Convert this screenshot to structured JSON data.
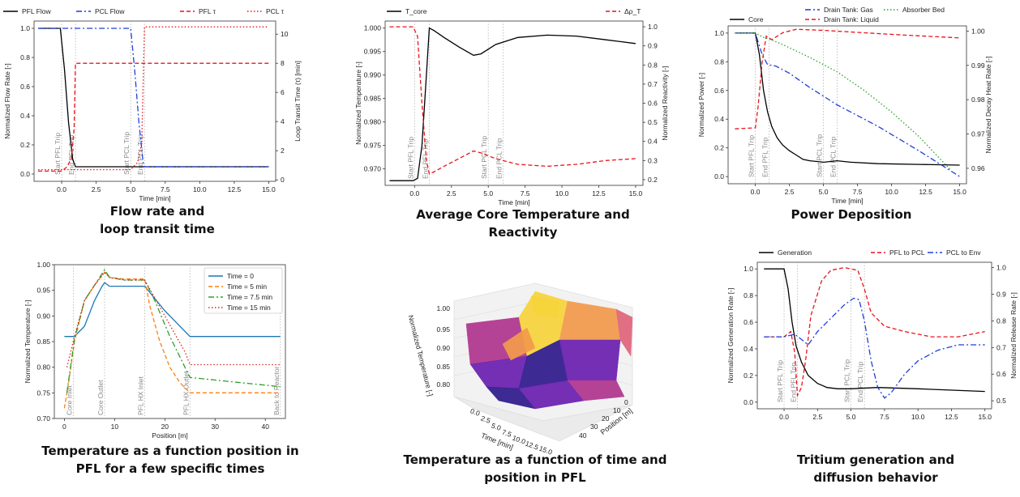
{
  "captions": {
    "c1": [
      "Flow rate and",
      "loop transit time"
    ],
    "c2": [
      "Average Core Temperature and",
      "Reactivity"
    ],
    "c3": [
      "Power Deposition"
    ],
    "c4": [
      "Temperature as a function position in",
      "PFL for a few specific times"
    ],
    "c5": [
      "Temperature as a function of time and",
      "position in PFL"
    ],
    "c6": [
      "Tritium generation and",
      "diffusion behavior"
    ]
  },
  "chart_data": [
    {
      "id": "flow",
      "type": "line",
      "xlabel": "Time [min]",
      "ylabel": "Normalized Flow Rate [-]",
      "y2label": "Loop Transit Time (τ) [min]",
      "xlim": [
        -2,
        15.5
      ],
      "ylim": [
        -0.05,
        1.05
      ],
      "y2lim": [
        -0.1,
        10.9
      ],
      "xticks": [
        "0.0",
        "2.5",
        "5.0",
        "7.5",
        "10.0",
        "12.5",
        "15.0"
      ],
      "yticks": [
        "0.0",
        "0.2",
        "0.4",
        "0.6",
        "0.8",
        "1.0"
      ],
      "y2ticks": [
        "0",
        "2",
        "4",
        "6",
        "8",
        "10"
      ],
      "legend": [
        "PFL Flow",
        "PCL Flow",
        "PFL τ",
        "PCL τ"
      ],
      "vlines": [
        {
          "x": 0,
          "label": "Start PFL Trip"
        },
        {
          "x": 1,
          "label": "End PFL Trip"
        },
        {
          "x": 5,
          "label": "Start PCL Trip"
        },
        {
          "x": 6,
          "label": "End PCL Trip"
        }
      ],
      "series": [
        {
          "name": "PFL Flow",
          "axis": "left",
          "color": "#000000",
          "dash": "",
          "x": [
            -1.7,
            -0.1,
            0.2,
            0.5,
            0.8,
            1.0,
            15
          ],
          "y": [
            1.0,
            1.0,
            0.72,
            0.35,
            0.1,
            0.05,
            0.05
          ]
        },
        {
          "name": "PCL Flow",
          "axis": "left",
          "color": "#1f3fd8",
          "dash": "7,3,2,3",
          "x": [
            -1.7,
            5.0,
            5.3,
            5.6,
            5.9,
            6.0,
            15
          ],
          "y": [
            1.0,
            1.0,
            0.7,
            0.35,
            0.08,
            0.05,
            0.05
          ]
        },
        {
          "name": "PFL τ",
          "axis": "right",
          "color": "#e8141c",
          "dash": "5,3",
          "x": [
            -1.7,
            0.0,
            0.4,
            0.7,
            0.9,
            1.0,
            15
          ],
          "y": [
            0.6,
            0.6,
            0.9,
            1.5,
            3.5,
            8.0,
            8.0
          ]
        },
        {
          "name": "PCL τ",
          "axis": "right",
          "color": "#e8141c",
          "dash": "1.5,2.5",
          "x": [
            -1.7,
            5.0,
            5.5,
            5.8,
            6.0,
            15
          ],
          "y": [
            0.7,
            0.7,
            1.2,
            2.5,
            10.5,
            10.5
          ]
        }
      ]
    },
    {
      "id": "temp",
      "type": "line",
      "xlabel": "Time [min]",
      "ylabel": "Normalized Temperature [-]",
      "y2label": "Normalized Reactivity [-]",
      "xlim": [
        -2,
        15.5
      ],
      "ylim": [
        0.9665,
        1.0015
      ],
      "y2lim": [
        0.17,
        1.03
      ],
      "xticks": [
        "0.0",
        "2.5",
        "5.0",
        "7.5",
        "10.0",
        "12.5",
        "15.0"
      ],
      "yticks": [
        "0.970",
        "0.975",
        "0.980",
        "0.985",
        "0.990",
        "0.995",
        "1.000"
      ],
      "y2ticks": [
        "0.2",
        "0.3",
        "0.4",
        "0.5",
        "0.6",
        "0.7",
        "0.8",
        "0.9",
        "1.0"
      ],
      "legend": [
        "T_core",
        "Δρ_T"
      ],
      "vlines": [
        {
          "x": 0,
          "label": "Start PFL Trip"
        },
        {
          "x": 1,
          "label": "End PFL Trip"
        },
        {
          "x": 5,
          "label": "Start PCL Trip"
        },
        {
          "x": 6,
          "label": "End PCL Trip"
        }
      ],
      "series": [
        {
          "name": "T_core",
          "axis": "left",
          "color": "#000000",
          "dash": "",
          "x": [
            -1.7,
            -0.1,
            0.2,
            0.5,
            0.8,
            1.0,
            1.3,
            2.0,
            3.0,
            4.0,
            4.5,
            5.5,
            7.0,
            9.0,
            11.0,
            13.0,
            15.0
          ],
          "y": [
            0.9675,
            0.9675,
            0.968,
            0.975,
            0.99,
            1.0,
            0.9995,
            0.998,
            0.996,
            0.9942,
            0.9945,
            0.9965,
            0.998,
            0.9985,
            0.9983,
            0.9975,
            0.9967
          ]
        },
        {
          "name": "Δρ_T",
          "axis": "right",
          "color": "#e8141c",
          "dash": "5,3",
          "x": [
            -1.7,
            -0.1,
            0.2,
            0.5,
            0.8,
            1.0,
            1.3,
            2.0,
            3.0,
            4.0,
            4.5,
            5.5,
            7.0,
            9.0,
            11.0,
            13.0,
            15.0
          ],
          "y": [
            1.0,
            1.0,
            0.95,
            0.6,
            0.3,
            0.23,
            0.24,
            0.27,
            0.31,
            0.35,
            0.34,
            0.31,
            0.28,
            0.27,
            0.28,
            0.3,
            0.31
          ]
        }
      ]
    },
    {
      "id": "power",
      "type": "line",
      "xlabel": "Time [min]",
      "ylabel": "Normalized Power [-]",
      "y2label": "Normalized Decay Heat Rate [-]",
      "xlim": [
        -2,
        15.5
      ],
      "ylim": [
        -0.05,
        1.05
      ],
      "y2lim": [
        0.9555,
        1.0015
      ],
      "xticks": [
        "0.0",
        "2.5",
        "5.0",
        "7.5",
        "10.0",
        "12.5",
        "15.0"
      ],
      "yticks": [
        "0.0",
        "0.2",
        "0.4",
        "0.6",
        "0.8",
        "1.0"
      ],
      "y2ticks": [
        "0.96",
        "0.97",
        "0.98",
        "0.99",
        "1.00"
      ],
      "legend": [
        "Core",
        "Drain Tank: Gas",
        "Drain Tank: Liquid",
        "Absorber Bed"
      ],
      "vlines": [
        {
          "x": 0,
          "label": "Start PFL Trip"
        },
        {
          "x": 1,
          "label": "End PFL Trip"
        },
        {
          "x": 5,
          "label": "Start PCL Trip"
        },
        {
          "x": 6,
          "label": "End PCL Trip"
        }
      ],
      "series": [
        {
          "name": "Core",
          "axis": "left",
          "color": "#000000",
          "dash": "",
          "x": [
            -1.5,
            0.0,
            0.3,
            0.6,
            0.9,
            1.2,
            1.6,
            2.0,
            2.5,
            3.0,
            3.5,
            4.0,
            5.0,
            6.0,
            7.0,
            9.0,
            12.0,
            15.0
          ],
          "y": [
            1.0,
            1.0,
            0.85,
            0.6,
            0.45,
            0.35,
            0.27,
            0.22,
            0.18,
            0.15,
            0.12,
            0.11,
            0.1,
            0.11,
            0.1,
            0.09,
            0.085,
            0.08
          ]
        },
        {
          "name": "Drain Tank: Gas",
          "axis": "left",
          "color": "#1f3fd8",
          "dash": "7,3,2,3",
          "x": [
            -1.5,
            0.0,
            0.5,
            0.9,
            1.5,
            2.5,
            4.0,
            6.0,
            9.0,
            12.0,
            15.0
          ],
          "y": [
            1.0,
            1.0,
            0.85,
            0.78,
            0.77,
            0.72,
            0.62,
            0.5,
            0.35,
            0.18,
            0.0
          ]
        },
        {
          "name": "Drain Tank: Liquid",
          "axis": "right",
          "color": "#e8141c",
          "dash": "5,3",
          "x": [
            -1.5,
            0.0,
            0.2,
            0.5,
            0.8,
            1.2,
            2.0,
            3.0,
            5.0,
            8.0,
            11.0,
            15.0
          ],
          "y": [
            0.9715,
            0.9718,
            0.978,
            0.991,
            0.9985,
            0.9975,
            0.9995,
            1.0005,
            1.0002,
            0.9995,
            0.9988,
            0.998
          ]
        },
        {
          "name": "Absorber Bed",
          "axis": "left",
          "color": "#2ca02c",
          "dash": "1.5,2.5",
          "x": [
            -1.5,
            0.0,
            0.6,
            1.0,
            2.0,
            4.0,
            6.0,
            8.0,
            10.0,
            12.0,
            14.3
          ],
          "y": [
            1.0,
            1.0,
            0.97,
            0.96,
            0.92,
            0.83,
            0.73,
            0.6,
            0.45,
            0.28,
            0.05
          ]
        }
      ]
    },
    {
      "id": "position",
      "type": "line",
      "xlabel": "Position [m]",
      "ylabel": "Normalized Temperature [-]",
      "xlim": [
        -2,
        44
      ],
      "ylim": [
        0.7,
        1.0
      ],
      "xticks": [
        "0",
        "10",
        "20",
        "30",
        "40"
      ],
      "xtickvals": [
        0,
        10,
        20,
        30,
        40
      ],
      "yticks": [
        "0.70",
        "0.75",
        "0.80",
        "0.85",
        "0.90",
        "0.95",
        "1.00"
      ],
      "legend": [
        "Time = 0",
        "Time = 5 min",
        "Time = 7.5 min",
        "Time = 15 min"
      ],
      "legend_placement": "upper right",
      "vlines": [
        {
          "x": 1.8,
          "label": "Core Inlet"
        },
        {
          "x": 8,
          "label": "Core Outlet"
        },
        {
          "x": 16,
          "label": "PFL HX Inlet"
        },
        {
          "x": 25,
          "label": "PFL HX Outlet"
        },
        {
          "x": 43,
          "label": "Back to Reactor"
        }
      ],
      "series": [
        {
          "name": "Time = 0",
          "color": "#1f77b4",
          "dash": "",
          "x": [
            0,
            2,
            4,
            6,
            7.5,
            8,
            9,
            12,
            16,
            20,
            25,
            30,
            35,
            43
          ],
          "y": [
            0.86,
            0.86,
            0.88,
            0.93,
            0.958,
            0.965,
            0.958,
            0.958,
            0.958,
            0.91,
            0.86,
            0.86,
            0.86,
            0.86
          ]
        },
        {
          "name": "Time = 5 min",
          "color": "#ff7f0e",
          "dash": "5,3",
          "x": [
            0,
            1,
            2,
            4,
            6,
            8,
            9,
            12,
            16,
            17,
            19,
            21,
            23,
            25,
            30,
            43
          ],
          "y": [
            0.72,
            0.78,
            0.85,
            0.93,
            0.96,
            0.985,
            0.975,
            0.972,
            0.972,
            0.92,
            0.85,
            0.8,
            0.77,
            0.75,
            0.75,
            0.75
          ]
        },
        {
          "name": "Time = 7.5 min",
          "color": "#2ca02c",
          "dash": "7,3,2,3",
          "x": [
            0.5,
            2,
            4,
            6,
            8,
            9,
            12,
            16,
            18,
            21,
            24,
            25,
            30,
            35,
            43
          ],
          "y": [
            0.75,
            0.855,
            0.93,
            0.96,
            0.99,
            0.975,
            0.97,
            0.97,
            0.93,
            0.86,
            0.8,
            0.78,
            0.775,
            0.77,
            0.762
          ]
        },
        {
          "name": "Time = 15 min",
          "color": "#d62728",
          "dash": "1.5,2.5",
          "x": [
            0.5,
            2,
            4,
            6,
            8,
            9,
            12,
            16,
            20,
            24,
            25,
            30,
            35,
            43
          ],
          "y": [
            0.8,
            0.86,
            0.93,
            0.96,
            0.985,
            0.975,
            0.97,
            0.97,
            0.9,
            0.83,
            0.805,
            0.805,
            0.805,
            0.805
          ]
        }
      ]
    },
    {
      "id": "surface",
      "type": "surface3d",
      "xlabel": "Time [min]",
      "ylabel": "Position [m]",
      "zlabel": "Normalized Temperature [-]",
      "xticks": [
        "0.0",
        "2.5",
        "5.0",
        "7.5",
        "10.0",
        "12.5",
        "15.0"
      ],
      "yticks": [
        "0",
        "10",
        "20",
        "30",
        "40"
      ],
      "zticks": [
        "0.80",
        "0.85",
        "0.90",
        "0.95",
        "1.00"
      ],
      "zlim": [
        0.75,
        1.0
      ],
      "colormap": [
        "#2e1a8a",
        "#6a1fb0",
        "#b0358e",
        "#e0647a",
        "#f39a4c",
        "#f7d43a"
      ]
    },
    {
      "id": "tritium",
      "type": "line",
      "xlabel": "",
      "ylabel": "Normalized Generation Rate [-]",
      "y2label": "Normalized Release Rate [-]",
      "xlim": [
        -2,
        15.5
      ],
      "ylim": [
        -0.05,
        1.05
      ],
      "y2lim": [
        0.47,
        1.02
      ],
      "xticks": [
        "0.0",
        "2.5",
        "5.0",
        "7.5",
        "10.0",
        "12.5",
        "15.0"
      ],
      "yticks": [
        "0.0",
        "0.2",
        "0.4",
        "0.6",
        "0.8",
        "1.0"
      ],
      "y2ticks": [
        "0.5",
        "0.6",
        "0.7",
        "0.8",
        "0.9",
        "1.0"
      ],
      "legend": [
        "Generation",
        "PFL to PCL",
        "PCL to Env"
      ],
      "vlines": [
        {
          "x": 0,
          "label": "Start PFL Trip"
        },
        {
          "x": 1,
          "label": "End PFL Trip"
        },
        {
          "x": 5,
          "label": "Start PCL Trip"
        },
        {
          "x": 6,
          "label": "End PCL Trip"
        }
      ],
      "series": [
        {
          "name": "Generation",
          "axis": "left",
          "color": "#000000",
          "dash": "",
          "x": [
            -1.5,
            0.0,
            0.3,
            0.6,
            0.9,
            1.3,
            1.8,
            2.5,
            3.2,
            4.0,
            5.0,
            7.0,
            10.0,
            15.0
          ],
          "y": [
            1.0,
            1.0,
            0.85,
            0.6,
            0.42,
            0.3,
            0.2,
            0.14,
            0.11,
            0.1,
            0.1,
            0.11,
            0.1,
            0.08
          ]
        },
        {
          "name": "PFL to PCL",
          "axis": "right",
          "color": "#e8141c",
          "dash": "5,3",
          "x": [
            -1.5,
            0.0,
            0.5,
            0.8,
            1.0,
            1.3,
            1.6,
            2.0,
            2.8,
            3.5,
            4.5,
            5.5,
            6.0,
            6.5,
            7.5,
            9.0,
            11.0,
            13.0,
            15.0
          ],
          "y": [
            0.74,
            0.74,
            0.76,
            0.68,
            0.52,
            0.55,
            0.65,
            0.82,
            0.95,
            0.99,
            1.0,
            0.99,
            0.92,
            0.83,
            0.78,
            0.76,
            0.74,
            0.74,
            0.76
          ]
        },
        {
          "name": "PCL to Env",
          "axis": "right",
          "color": "#1f3fd8",
          "dash": "7,3,2,3",
          "x": [
            -1.5,
            0.0,
            0.8,
            1.3,
            1.8,
            2.5,
            3.5,
            4.5,
            5.2,
            5.6,
            6.0,
            6.5,
            7.0,
            7.5,
            8.0,
            9.0,
            10.0,
            11.5,
            13.0,
            15.0
          ],
          "y": [
            0.74,
            0.74,
            0.75,
            0.73,
            0.71,
            0.76,
            0.81,
            0.86,
            0.885,
            0.88,
            0.8,
            0.65,
            0.55,
            0.51,
            0.53,
            0.6,
            0.65,
            0.69,
            0.71,
            0.71
          ]
        }
      ]
    }
  ]
}
